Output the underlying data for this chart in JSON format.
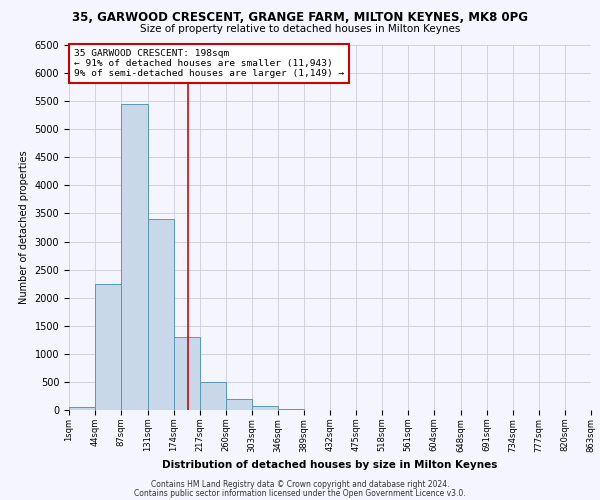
{
  "title": "35, GARWOOD CRESCENT, GRANGE FARM, MILTON KEYNES, MK8 0PG",
  "subtitle": "Size of property relative to detached houses in Milton Keynes",
  "xlabel": "Distribution of detached houses by size in Milton Keynes",
  "ylabel": "Number of detached properties",
  "footer_line1": "Contains HM Land Registry data © Crown copyright and database right 2024.",
  "footer_line2": "Contains public sector information licensed under the Open Government Licence v3.0.",
  "bin_edges": [
    1,
    44,
    87,
    131,
    174,
    217,
    260,
    303,
    346,
    389,
    432,
    475,
    518,
    561,
    604,
    648,
    691,
    734,
    777,
    820,
    863
  ],
  "bin_labels": [
    "1sqm",
    "44sqm",
    "87sqm",
    "131sqm",
    "174sqm",
    "217sqm",
    "260sqm",
    "303sqm",
    "346sqm",
    "389sqm",
    "432sqm",
    "475sqm",
    "518sqm",
    "561sqm",
    "604sqm",
    "648sqm",
    "691sqm",
    "734sqm",
    "777sqm",
    "820sqm",
    "863sqm"
  ],
  "bar_heights": [
    50,
    2250,
    5450,
    3400,
    1300,
    500,
    190,
    75,
    25,
    0,
    0,
    0,
    0,
    0,
    0,
    0,
    0,
    0,
    0,
    0
  ],
  "bar_color": "#c8d8e8",
  "bar_edgecolor": "#5599bb",
  "vline_x": 198,
  "vline_color": "#bb1111",
  "ylim": [
    0,
    6500
  ],
  "yticks": [
    0,
    500,
    1000,
    1500,
    2000,
    2500,
    3000,
    3500,
    4000,
    4500,
    5000,
    5500,
    6000,
    6500
  ],
  "annotation_line1": "35 GARWOOD CRESCENT: 198sqm",
  "annotation_line2": "← 91% of detached houses are smaller (11,943)",
  "annotation_line3": "9% of semi-detached houses are larger (1,149) →",
  "annotation_box_color": "#ffffff",
  "annotation_box_edgecolor": "#cc0000",
  "background_color": "#f5f5ff",
  "grid_color": "#ccccdd"
}
